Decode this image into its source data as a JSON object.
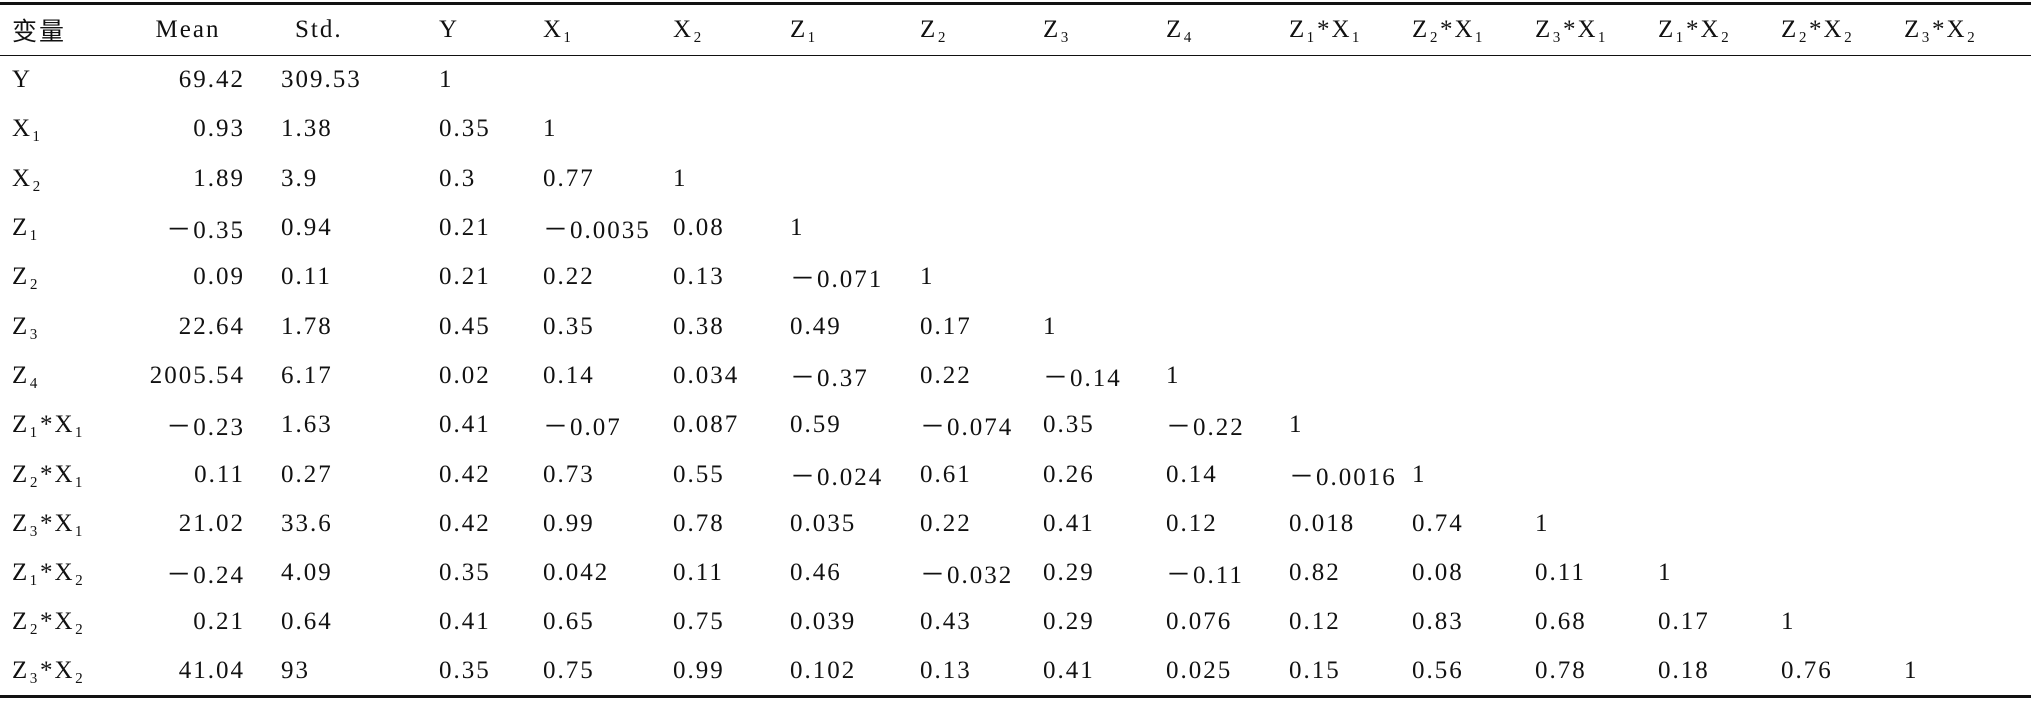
{
  "table": {
    "header": [
      "变量",
      "Mean",
      "Std.",
      "Y",
      "X₁",
      "X₂",
      "Z₁",
      "Z₂",
      "Z₃",
      "Z₄",
      "Z₁*X₁",
      "Z₂*X₁",
      "Z₃*X₁",
      "Z₁*X₂",
      "Z₂*X₂",
      "Z₃*X₂"
    ],
    "rows": [
      {
        "label": "Y",
        "cells": [
          "69.42",
          "309.53",
          "1"
        ]
      },
      {
        "label": "X₁",
        "cells": [
          "0.93",
          "1.38",
          "0.35",
          "1"
        ]
      },
      {
        "label": "X₂",
        "cells": [
          "1.89",
          "3.9",
          "0.3",
          "0.77",
          "1"
        ]
      },
      {
        "label": "Z₁",
        "cells": [
          "－0.35",
          "0.94",
          "0.21",
          "－0.0035",
          "0.08",
          "1"
        ]
      },
      {
        "label": "Z₂",
        "cells": [
          "0.09",
          "0.11",
          "0.21",
          "0.22",
          "0.13",
          "－0.071",
          "1"
        ]
      },
      {
        "label": "Z₃",
        "cells": [
          "22.64",
          "1.78",
          "0.45",
          "0.35",
          "0.38",
          "0.49",
          "0.17",
          "1"
        ]
      },
      {
        "label": "Z₄",
        "cells": [
          "2005.54",
          "6.17",
          "0.02",
          "0.14",
          "0.034",
          "－0.37",
          "0.22",
          "－0.14",
          "1"
        ]
      },
      {
        "label": "Z₁*X₁",
        "cells": [
          "－0.23",
          "1.63",
          "0.41",
          "－0.07",
          "0.087",
          "0.59",
          "－0.074",
          "0.35",
          "－0.22",
          "1"
        ]
      },
      {
        "label": "Z₂*X₁",
        "cells": [
          "0.11",
          "0.27",
          "0.42",
          "0.73",
          "0.55",
          "－0.024",
          "0.61",
          "0.26",
          "0.14",
          "－0.0016",
          "1"
        ]
      },
      {
        "label": "Z₃*X₁",
        "cells": [
          "21.02",
          "33.6",
          "0.42",
          "0.99",
          "0.78",
          "0.035",
          "0.22",
          "0.41",
          "0.12",
          "0.018",
          "0.74",
          "1"
        ]
      },
      {
        "label": "Z₁*X₂",
        "cells": [
          "－0.24",
          "4.09",
          "0.35",
          "0.042",
          "0.11",
          "0.46",
          "－0.032",
          "0.29",
          "－0.11",
          "0.82",
          "0.08",
          "0.11",
          "1"
        ]
      },
      {
        "label": "Z₂*X₂",
        "cells": [
          "0.21",
          "0.64",
          "0.41",
          "0.65",
          "0.75",
          "0.039",
          "0.43",
          "0.29",
          "0.076",
          "0.12",
          "0.83",
          "0.68",
          "0.17",
          "1"
        ]
      },
      {
        "label": "Z₃*X₂",
        "cells": [
          "41.04",
          "93",
          "0.35",
          "0.75",
          "0.99",
          "0.102",
          "0.13",
          "0.41",
          "0.025",
          "0.15",
          "0.56",
          "0.78",
          "0.18",
          "0.76",
          "1"
        ]
      }
    ]
  }
}
